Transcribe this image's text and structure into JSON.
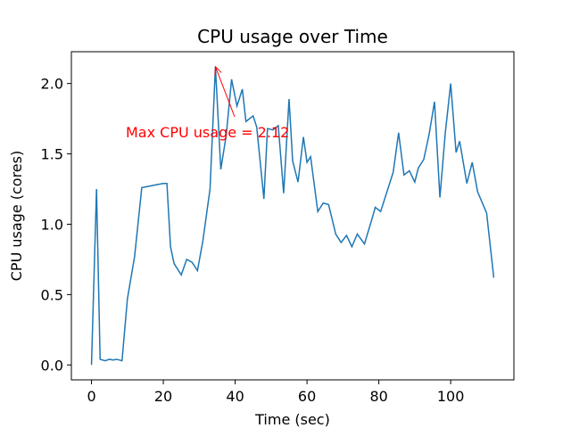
{
  "chart_data": {
    "type": "line",
    "title": "CPU usage over Time",
    "xlabel": "Time (sec)",
    "ylabel": "CPU usage (cores)",
    "series": [
      {
        "name": "CPU usage",
        "color": "#1f77b4",
        "x": [
          0,
          1.4,
          2.4,
          3.8,
          5,
          6,
          7,
          8.5,
          10,
          12,
          14,
          16,
          18,
          20,
          21,
          22,
          23,
          25,
          26.5,
          28,
          29.5,
          31,
          33,
          34.5,
          36,
          37.5,
          39,
          40.5,
          42,
          43,
          45,
          46,
          48,
          49,
          50.5,
          52,
          53.5,
          55,
          56,
          57.5,
          59,
          60,
          61,
          63,
          64.5,
          66,
          68,
          69.5,
          71,
          72.5,
          74,
          76,
          78,
          79,
          80.5,
          82,
          84,
          85.5,
          87,
          88.5,
          90,
          91,
          92.5,
          94,
          95.5,
          97,
          98.5,
          100,
          101.5,
          102.5,
          104.5,
          106,
          107.5,
          110,
          112
        ],
        "values": [
          0,
          1.25,
          0.04,
          0.03,
          0.04,
          0.035,
          0.04,
          0.03,
          0.47,
          0.77,
          1.26,
          1.27,
          1.28,
          1.29,
          1.29,
          0.84,
          0.72,
          0.64,
          0.75,
          0.73,
          0.67,
          0.88,
          1.25,
          2.12,
          1.39,
          1.63,
          2.03,
          1.84,
          1.96,
          1.73,
          1.77,
          1.69,
          1.18,
          1.68,
          1.67,
          1.7,
          1.22,
          1.89,
          1.45,
          1.3,
          1.62,
          1.44,
          1.48,
          1.09,
          1.15,
          1.14,
          0.93,
          0.87,
          0.92,
          0.84,
          0.93,
          0.86,
          1.03,
          1.12,
          1.09,
          1.21,
          1.37,
          1.65,
          1.35,
          1.38,
          1.3,
          1.4,
          1.46,
          1.64,
          1.87,
          1.19,
          1.65,
          2.0,
          1.51,
          1.59,
          1.29,
          1.44,
          1.23,
          1.08,
          0.62
        ]
      }
    ],
    "xlim": [
      -5.6,
      117.6
    ],
    "xticks": [
      0,
      20,
      40,
      60,
      80,
      100
    ],
    "ylim": [
      -0.106,
      2.226
    ],
    "yticks": [
      {
        "value": 0,
        "label": "0.0"
      },
      0.5,
      {
        "value": 1,
        "label": "1.0"
      },
      1.5,
      {
        "value": 2,
        "label": "2.0"
      }
    ],
    "annotation": {
      "text": "Max CPU usage = 2.12",
      "x": 34.5,
      "y": 2.12,
      "color": "red"
    }
  }
}
